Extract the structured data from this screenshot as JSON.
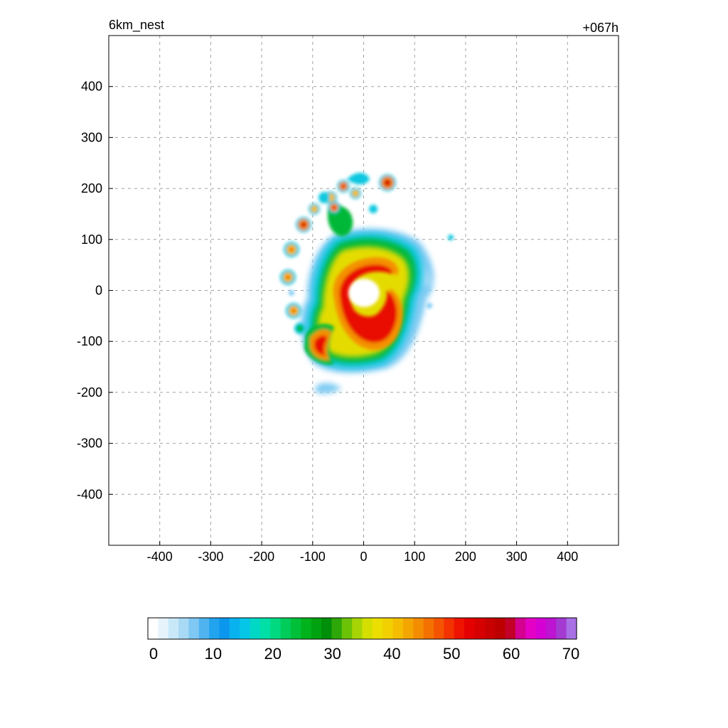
{
  "header": {
    "title_left": "6km_nest",
    "title_right": "+067h"
  },
  "chart_data": {
    "type": "heatmap",
    "title": "6km_nest",
    "time_label": "+067h",
    "xlabel": "",
    "ylabel": "",
    "xlim": [
      -500,
      500
    ],
    "ylim": [
      -500,
      500
    ],
    "xticks": [
      -400,
      -300,
      -200,
      -100,
      0,
      100,
      200,
      300,
      400
    ],
    "yticks": [
      -400,
      -300,
      -200,
      -100,
      0,
      100,
      200,
      300,
      400
    ],
    "grid": true,
    "colorbar": {
      "min": 0,
      "max": 70,
      "ticks": [
        0,
        10,
        20,
        30,
        40,
        50,
        60,
        70
      ],
      "placement": "bottom",
      "colors": [
        "#ffffff",
        "#e6f3fb",
        "#c8e8f8",
        "#a8daf6",
        "#7fc8f4",
        "#4fb3f0",
        "#22a3ee",
        "#0c97ee",
        "#08b2ee",
        "#05c6e6",
        "#00d8c6",
        "#00dfa6",
        "#00d97f",
        "#00cc5a",
        "#00c03a",
        "#00b21c",
        "#00a210",
        "#008f0a",
        "#2ea808",
        "#6cc206",
        "#a6d404",
        "#d4df00",
        "#ecde00",
        "#f2d000",
        "#f4bd00",
        "#f4a600",
        "#f48c00",
        "#f47100",
        "#f45400",
        "#f43200",
        "#ee1300",
        "#e40000",
        "#d60000",
        "#c80000",
        "#bc0000",
        "#c20028",
        "#d40090",
        "#e400c4",
        "#d400d4",
        "#bc14d0",
        "#a43ad2",
        "#a870e4"
      ]
    },
    "features": [
      {
        "x": 0,
        "y": 20,
        "value": 0,
        "kind": "eye"
      },
      {
        "x": 20,
        "y": 40,
        "value": 50,
        "kind": "eyewall"
      },
      {
        "x": 35,
        "y": -40,
        "value": 52,
        "kind": "eyewall"
      },
      {
        "x": -85,
        "y": -105,
        "value": 50,
        "kind": "rainband"
      },
      {
        "x": 50,
        "y": 212,
        "value": 50,
        "kind": "cell"
      },
      {
        "x": -118,
        "y": 130,
        "value": 50,
        "kind": "cell"
      },
      {
        "x": -140,
        "y": 82,
        "value": 42,
        "kind": "cell"
      },
      {
        "x": -150,
        "y": 27,
        "value": 42,
        "kind": "cell"
      },
      {
        "x": -140,
        "y": -38,
        "value": 42,
        "kind": "cell"
      },
      {
        "x": -40,
        "y": 203,
        "value": 45,
        "kind": "cell"
      },
      {
        "x": -65,
        "y": 165,
        "value": 42,
        "kind": "cell"
      },
      {
        "x": 172,
        "y": 104,
        "value": 14,
        "kind": "cell"
      }
    ]
  }
}
